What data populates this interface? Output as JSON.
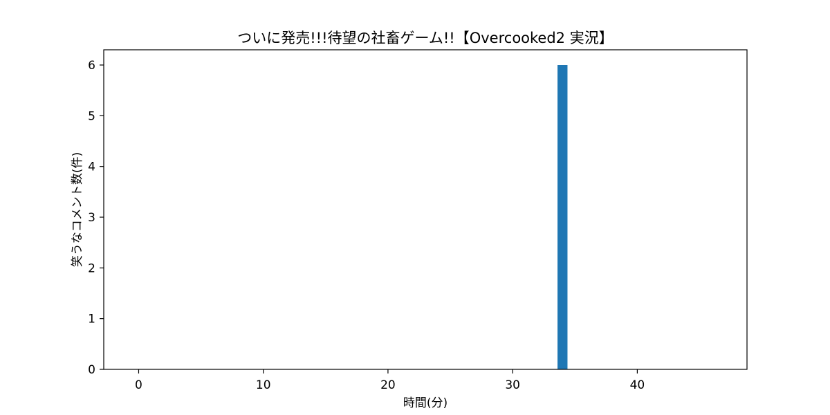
{
  "chart_data": {
    "type": "bar",
    "title": "ついに発売!!!待望の社畜ゲーム!!【Overcooked2 実況】",
    "xlabel": "時間(分)",
    "ylabel": "笑うなコメント数(件)",
    "x": [
      34
    ],
    "values": [
      6
    ],
    "xlim": [
      -2.8,
      48.8
    ],
    "ylim": [
      0,
      6.3
    ],
    "xticks": [
      0,
      10,
      20,
      30,
      40
    ],
    "yticks": [
      0,
      1,
      2,
      3,
      4,
      5,
      6
    ],
    "bar_width": 0.8,
    "bar_color": "#1f77b4",
    "grid": false,
    "legend": false
  }
}
